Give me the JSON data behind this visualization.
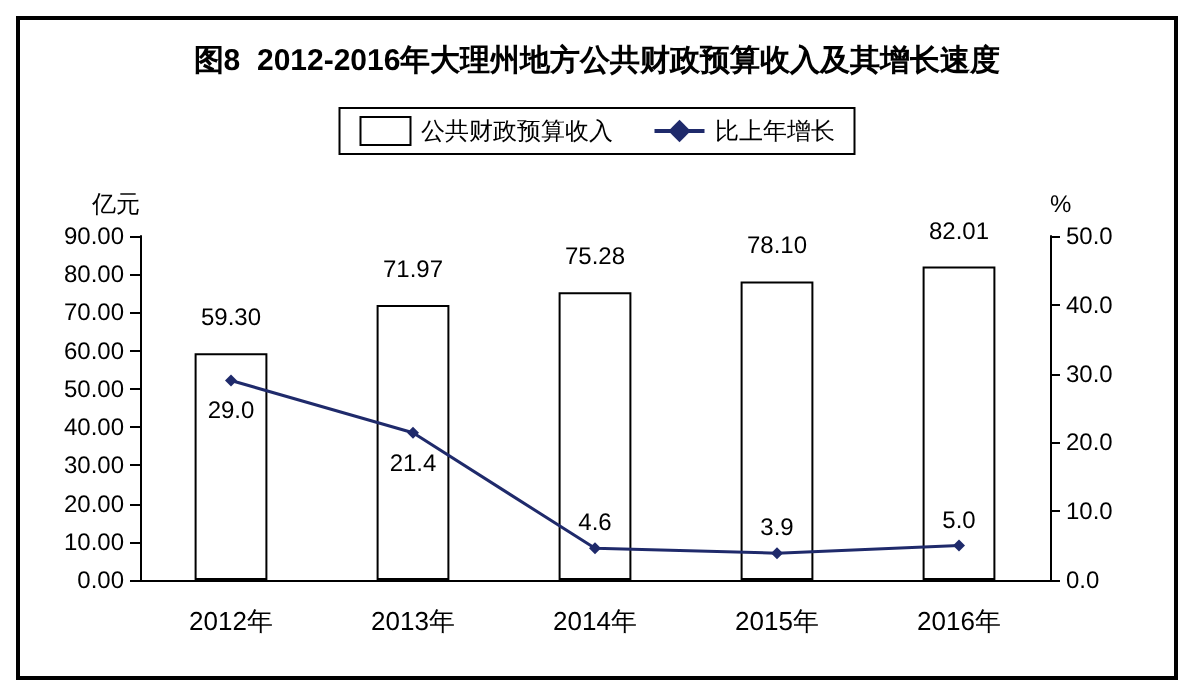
{
  "chart_data": {
    "type": "bar",
    "title": "图8  2012-2016年大理州地方公共财政预算收入及其增长速度",
    "categories": [
      "2012年",
      "2013年",
      "2014年",
      "2015年",
      "2016年"
    ],
    "series": [
      {
        "name": "公共财政预算收入",
        "color": "#ffffff",
        "values": [
          59.3,
          71.97,
          75.28,
          78.1,
          82.01
        ],
        "value_labels": [
          "59.30",
          "71.97",
          "75.28",
          "78.10",
          "82.01"
        ]
      },
      {
        "name": "比上年增长",
        "type": "line",
        "axis": "y2",
        "color": "#1f2a6b",
        "values": [
          29.0,
          21.4,
          4.6,
          3.9,
          5.0
        ],
        "value_labels": [
          "29.0",
          "21.4",
          "4.6",
          "3.9",
          "5.0"
        ]
      }
    ],
    "ylabel": "亿元",
    "y2label": "%",
    "ylim": [
      0,
      90
    ],
    "yticks": [
      {
        "value": 0,
        "label": "0.00"
      },
      {
        "value": 10,
        "label": "10.00"
      },
      {
        "value": 20,
        "label": "20.00"
      },
      {
        "value": 30,
        "label": "30.00"
      },
      {
        "value": 40,
        "label": "40.00"
      },
      {
        "value": 50,
        "label": "50.00"
      },
      {
        "value": 60,
        "label": "60.00"
      },
      {
        "value": 70,
        "label": "70.00"
      },
      {
        "value": 80,
        "label": "80.00"
      },
      {
        "value": 90,
        "label": "90.00"
      }
    ],
    "y2lim": [
      0,
      50
    ],
    "y2ticks": [
      {
        "value": 0,
        "label": "0.0"
      },
      {
        "value": 10,
        "label": "10.0"
      },
      {
        "value": 20,
        "label": "20.0"
      },
      {
        "value": 30,
        "label": "30.0"
      },
      {
        "value": 40,
        "label": "40.0"
      },
      {
        "value": 50,
        "label": "50.0"
      }
    ],
    "legend": "top",
    "grid": false,
    "marker": "diamond",
    "line_style": "solid"
  }
}
